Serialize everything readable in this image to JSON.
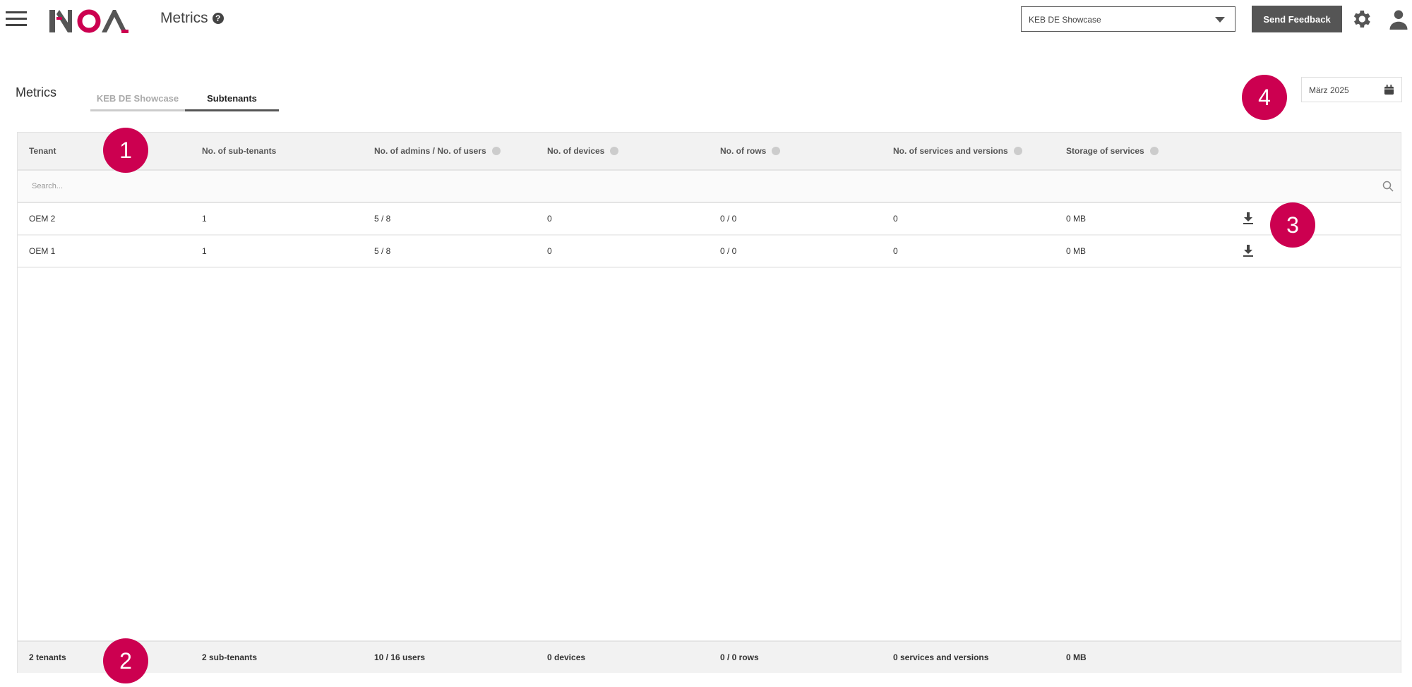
{
  "header": {
    "title": "Metrics",
    "tenant_select": "KEB DE Showcase",
    "send_feedback": "Send Feedback",
    "logo_text": "NOA"
  },
  "page": {
    "heading": "Metrics",
    "tabs": [
      {
        "label": "KEB DE Showcase",
        "active": false
      },
      {
        "label": "Subtenants",
        "active": true
      }
    ],
    "date": "März 2025"
  },
  "table": {
    "columns": [
      "Tenant",
      "No. of sub-tenants",
      "No. of admins / No. of users",
      "No. of devices",
      "No. of rows",
      "No. of services and versions",
      "Storage of services"
    ],
    "search_placeholder": "Search...",
    "rows": [
      [
        "OEM 2",
        "1",
        "5 / 8",
        "0",
        "0 / 0",
        "0",
        "0 MB"
      ],
      [
        "OEM 1",
        "1",
        "5 / 8",
        "0",
        "0 / 0",
        "0",
        "0 MB"
      ]
    ],
    "footer": [
      "2 tenants",
      "2 sub-tenants",
      "10 / 16 users",
      "0 devices",
      "0 / 0 rows",
      "0 services and versions",
      "0 MB"
    ]
  },
  "annotations": [
    "1",
    "2",
    "3",
    "4"
  ],
  "colors": {
    "accent": "#cc0050",
    "button": "#555555"
  }
}
